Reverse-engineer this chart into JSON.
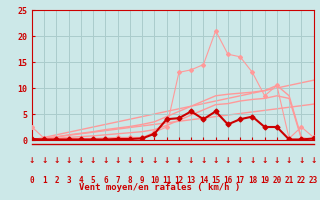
{
  "xlabel": "Vent moyen/en rafales ( km/h )",
  "bg_color": "#cce8e8",
  "grid_color": "#aacccc",
  "x_values": [
    0,
    1,
    2,
    3,
    4,
    5,
    6,
    7,
    8,
    9,
    10,
    11,
    12,
    13,
    14,
    15,
    16,
    17,
    18,
    19,
    20,
    21,
    22,
    23
  ],
  "series": [
    {
      "name": "line_spike_light",
      "y": [
        2.5,
        0.3,
        0.3,
        0.3,
        0.3,
        0.3,
        0.4,
        0.5,
        0.5,
        0.5,
        1.5,
        2.5,
        13.0,
        13.5,
        14.5,
        21.0,
        16.5,
        16.0,
        13.0,
        8.5,
        10.5,
        0.3,
        2.5,
        0.5
      ],
      "color": "#ff9999",
      "lw": 0.8,
      "marker": "D",
      "ms": 2.0,
      "zorder": 3
    },
    {
      "name": "line_upper_diagonal",
      "y": [
        0.0,
        0.3,
        0.6,
        1.0,
        1.3,
        1.6,
        2.0,
        2.3,
        2.6,
        3.0,
        3.5,
        4.5,
        5.5,
        6.5,
        7.5,
        8.5,
        8.8,
        9.0,
        9.2,
        9.5,
        10.5,
        8.5,
        0.5,
        0.0
      ],
      "color": "#ff9999",
      "lw": 1.0,
      "marker": null,
      "ms": 0,
      "zorder": 2
    },
    {
      "name": "line_lower_diagonal",
      "y": [
        0.0,
        0.15,
        0.3,
        0.5,
        0.65,
        0.8,
        1.0,
        1.2,
        1.4,
        1.6,
        2.0,
        2.8,
        3.8,
        4.8,
        5.8,
        6.8,
        7.0,
        7.5,
        7.8,
        8.0,
        8.5,
        8.0,
        0.3,
        0.0
      ],
      "color": "#ff9999",
      "lw": 1.0,
      "marker": null,
      "ms": 0,
      "zorder": 2
    },
    {
      "name": "line_dark_diamond",
      "y": [
        0.2,
        0.1,
        0.1,
        0.1,
        0.1,
        0.1,
        0.1,
        0.2,
        0.2,
        0.3,
        1.2,
        4.0,
        4.2,
        5.5,
        4.0,
        5.5,
        3.0,
        4.0,
        4.5,
        2.5,
        2.5,
        0.1,
        0.1,
        0.3
      ],
      "color": "#cc0000",
      "lw": 1.5,
      "marker": "D",
      "ms": 2.5,
      "zorder": 4
    }
  ],
  "straight_upper": [
    0.0,
    0.5,
    1.0,
    1.5,
    2.0,
    2.5,
    3.0,
    3.5,
    4.0,
    4.5,
    5.0,
    5.5,
    6.0,
    6.5,
    7.0,
    7.5,
    8.0,
    8.5,
    9.0,
    9.5,
    10.0,
    10.5,
    11.0,
    11.5
  ],
  "straight_lower": [
    0.0,
    0.3,
    0.6,
    0.9,
    1.2,
    1.5,
    1.8,
    2.1,
    2.4,
    2.7,
    3.0,
    3.3,
    3.6,
    3.9,
    4.2,
    4.5,
    4.8,
    5.1,
    5.4,
    5.7,
    6.0,
    6.3,
    6.6,
    6.9
  ],
  "ylim": [
    0,
    25
  ],
  "yticks": [
    0,
    5,
    10,
    15,
    20,
    25
  ],
  "xlim": [
    0,
    23
  ],
  "arrow_color": "#cc0000",
  "tick_color": "#cc0000",
  "label_color": "#cc0000",
  "axis_line_color": "#cc0000"
}
